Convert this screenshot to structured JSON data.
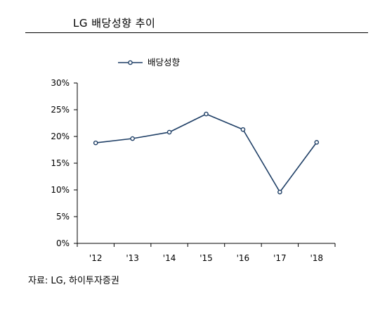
{
  "header": {
    "title": "LG 배당성향 추이"
  },
  "footer": {
    "source": "자료: LG, 하이투자증권"
  },
  "chart_data": {
    "type": "line",
    "categories": [
      "'12",
      "'13",
      "'14",
      "'15",
      "'16",
      "'17",
      "'18"
    ],
    "series": [
      {
        "name": "배당성향",
        "values": [
          18.8,
          19.6,
          20.8,
          24.2,
          21.3,
          9.6,
          18.9
        ]
      }
    ],
    "ylim": [
      0,
      30
    ],
    "yticks": [
      0,
      5,
      10,
      15,
      20,
      25,
      30
    ],
    "ytick_labels": [
      "0%",
      "5%",
      "10%",
      "15%",
      "20%",
      "25%",
      "30%"
    ],
    "grid": false,
    "legend_position": "top-left",
    "colors": {
      "line": "#1f3f66",
      "marker_fill": "#ffffff",
      "axis": "#000000"
    }
  }
}
